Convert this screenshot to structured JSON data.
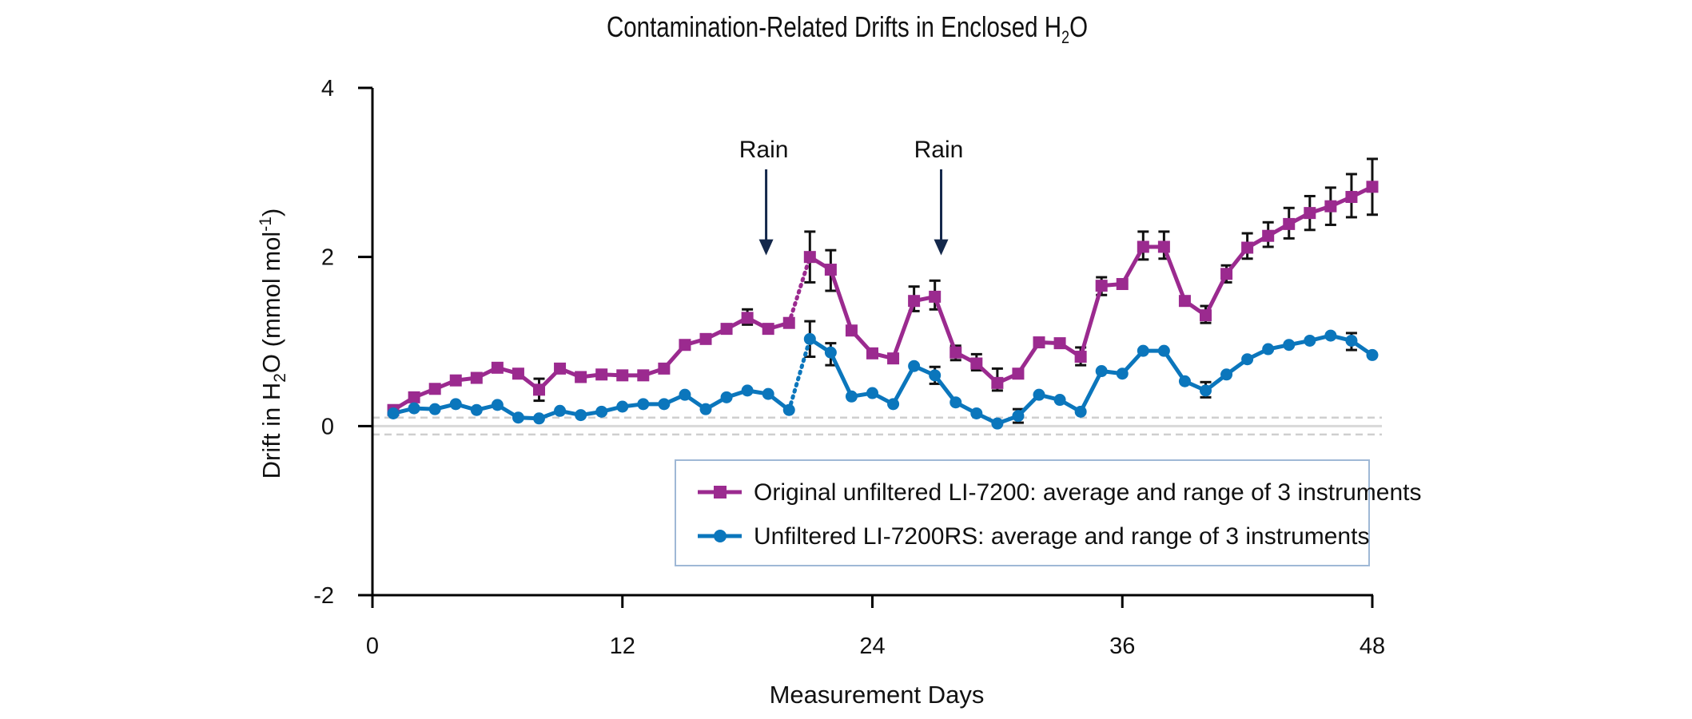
{
  "chart_data": {
    "type": "line",
    "title": "Contamination-Related Drifts in Enclosed H",
    "title_sub": "2",
    "title_end": "O",
    "xlabel": "Measurement Days",
    "ylabel_pre": "Drift in H",
    "ylabel_sub": "2",
    "ylabel_mid": "O (mmol mol",
    "ylabel_sup": "-1",
    "ylabel_end": ")",
    "xlim": [
      0,
      48
    ],
    "ylim": [
      -2,
      4
    ],
    "xticks": [
      "0",
      "12",
      "24",
      "36",
      "48"
    ],
    "yticks": [
      "4",
      "2",
      "0",
      "-2"
    ],
    "grid": false,
    "reference_lines": [
      -0.1,
      0,
      0.1
    ],
    "legend_position": "bottom-right",
    "annotations": [
      {
        "label": "Rain",
        "x": 18.9,
        "y": 2.0
      },
      {
        "label": "Rain",
        "x": 27.3,
        "y": 2.0
      }
    ],
    "series": [
      {
        "name": "Original unfiltered LI-7200: average and range of 3 instruments",
        "color": "#9b2a8f",
        "marker": "square",
        "gap_after_index": 19,
        "x": [
          1,
          2,
          3,
          4,
          5,
          6,
          7,
          8,
          9,
          10,
          11,
          12,
          13,
          14,
          15,
          16,
          17,
          18,
          19,
          20,
          21,
          22,
          23,
          24,
          25,
          26,
          27,
          28,
          29,
          30,
          31,
          32,
          33,
          34,
          35,
          36,
          37,
          38,
          39,
          40,
          41,
          42,
          43,
          44,
          45,
          46,
          47,
          48
        ],
        "y": [
          0.19,
          0.34,
          0.44,
          0.54,
          0.57,
          0.69,
          0.62,
          0.43,
          0.68,
          0.58,
          0.61,
          0.6,
          0.6,
          0.68,
          0.96,
          1.03,
          1.15,
          1.28,
          1.15,
          1.22,
          2.0,
          1.85,
          1.13,
          0.86,
          0.8,
          1.48,
          1.53,
          0.87,
          0.74,
          0.51,
          0.62,
          0.99,
          0.98,
          0.82,
          1.66,
          1.68,
          2.12,
          2.12,
          1.48,
          1.31,
          1.8,
          2.11,
          2.25,
          2.39,
          2.52,
          2.6,
          2.71,
          2.83
        ],
        "err_low": [
          0,
          0,
          0,
          0,
          0,
          0,
          0,
          0.3,
          0,
          0,
          0,
          0,
          0,
          0,
          0,
          0,
          0,
          1.2,
          0,
          0,
          1.7,
          1.6,
          0,
          0,
          0,
          1.36,
          1.38,
          0.78,
          0.66,
          0.42,
          0,
          0,
          0,
          0.72,
          1.55,
          0,
          1.97,
          1.98,
          0,
          1.22,
          1.7,
          1.98,
          2.12,
          2.22,
          2.32,
          2.38,
          2.47,
          2.5
        ],
        "err_high": [
          0,
          0,
          0,
          0,
          0,
          0,
          0,
          0.56,
          0,
          0,
          0,
          0,
          0,
          0,
          0,
          0,
          0,
          1.38,
          0,
          0,
          2.3,
          2.08,
          0,
          0,
          0,
          1.65,
          1.72,
          0.95,
          0.85,
          0.68,
          0,
          0,
          0,
          0.93,
          1.76,
          0,
          2.3,
          2.3,
          0,
          1.42,
          1.9,
          2.28,
          2.41,
          2.58,
          2.72,
          2.82,
          2.98,
          3.16
        ]
      },
      {
        "name": "Unfiltered LI-7200RS: average and range of 3 instruments",
        "color": "#0b76bc",
        "marker": "circle",
        "gap_after_index": 19,
        "x": [
          1,
          2,
          3,
          4,
          5,
          6,
          7,
          8,
          9,
          10,
          11,
          12,
          13,
          14,
          15,
          16,
          17,
          18,
          19,
          20,
          21,
          22,
          23,
          24,
          25,
          26,
          27,
          28,
          29,
          30,
          31,
          32,
          33,
          34,
          35,
          36,
          37,
          38,
          39,
          40,
          41,
          42,
          43,
          44,
          45,
          46,
          47,
          48
        ],
        "y": [
          0.15,
          0.21,
          0.2,
          0.26,
          0.19,
          0.25,
          0.1,
          0.09,
          0.18,
          0.13,
          0.17,
          0.23,
          0.26,
          0.26,
          0.37,
          0.2,
          0.34,
          0.42,
          0.38,
          0.19,
          1.03,
          0.87,
          0.35,
          0.39,
          0.26,
          0.71,
          0.6,
          0.28,
          0.15,
          0.03,
          0.12,
          0.37,
          0.31,
          0.17,
          0.65,
          0.62,
          0.89,
          0.89,
          0.53,
          0.42,
          0.61,
          0.79,
          0.91,
          0.96,
          1.01,
          1.07,
          1.01,
          0.84
        ],
        "err_low": [
          0,
          0,
          0,
          0,
          0,
          0,
          0,
          0,
          0,
          0,
          0,
          0,
          0,
          0,
          0,
          0,
          0,
          0,
          0,
          0,
          0.82,
          0.72,
          0,
          0,
          0,
          0,
          0.5,
          0,
          0,
          0,
          0.04,
          0,
          0,
          0,
          0,
          0,
          0,
          0,
          0,
          0.34,
          0,
          0,
          0,
          0,
          0,
          0,
          0.9,
          0
        ],
        "err_high": [
          0,
          0,
          0,
          0,
          0,
          0,
          0,
          0,
          0,
          0,
          0,
          0,
          0,
          0,
          0,
          0,
          0,
          0,
          0,
          0,
          1.24,
          0.98,
          0,
          0,
          0,
          0,
          0.7,
          0,
          0,
          0,
          0.2,
          0,
          0,
          0,
          0,
          0,
          0,
          0,
          0,
          0.52,
          0,
          0,
          0,
          0,
          0,
          0,
          1.1,
          0
        ]
      }
    ]
  }
}
